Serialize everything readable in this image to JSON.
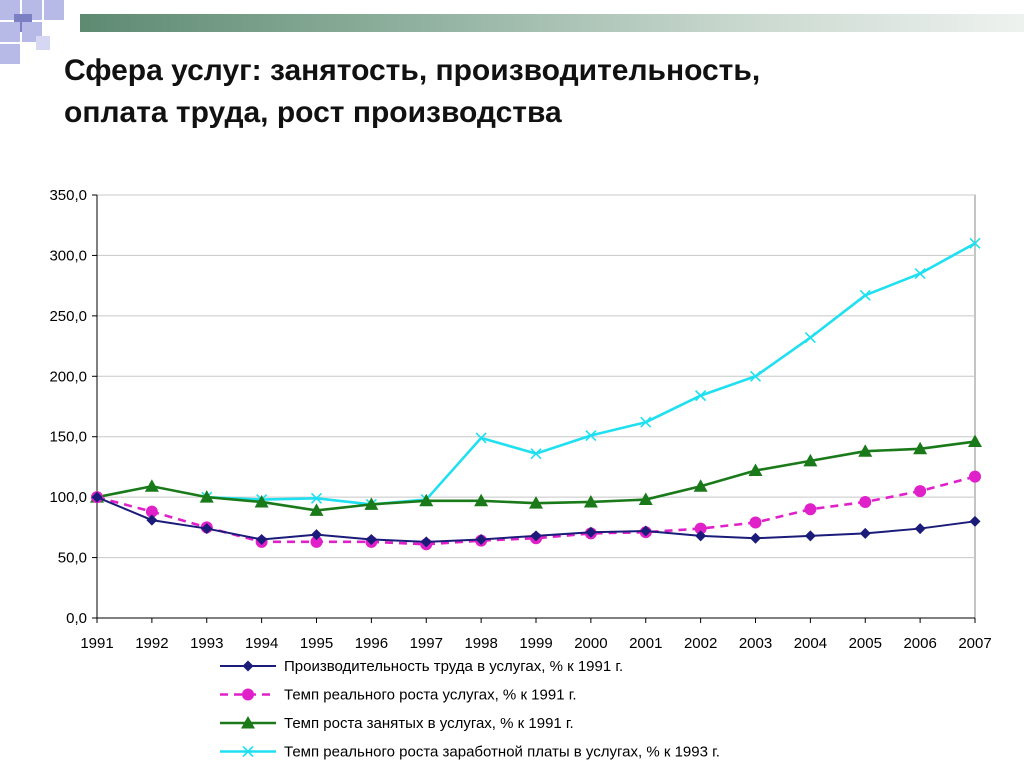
{
  "slide": {
    "title_line1": "Сфера услуг: занятость, производительность,",
    "title_line2": "оплата труда, рост производства"
  },
  "colors": {
    "accent_green": "#5e8a72",
    "deco_blue": "#b7b9e6",
    "deco_purple": "#7d7fc4"
  },
  "chart_data": {
    "type": "line",
    "x": [
      "1991",
      "1992",
      "1993",
      "1994",
      "1995",
      "1996",
      "1997",
      "1998",
      "1999",
      "2000",
      "2001",
      "2002",
      "2003",
      "2004",
      "2005",
      "2006",
      "2007"
    ],
    "ylim": [
      0,
      350
    ],
    "yticks": [
      "0,0",
      "50,0",
      "100,0",
      "150,0",
      "200,0",
      "250,0",
      "300,0",
      "350,0"
    ],
    "ytick_values": [
      0,
      50,
      100,
      150,
      200,
      250,
      300,
      350
    ],
    "grid": true,
    "legend_position": "bottom",
    "series": [
      {
        "name": "Производительность труда в услугах, % к 1991 г.",
        "color": "#1b1b7a",
        "marker": "diamond",
        "dash": "solid",
        "values": [
          100,
          81,
          74,
          65,
          69,
          65,
          63,
          65,
          68,
          71,
          72,
          68,
          66,
          68,
          70,
          74,
          80
        ]
      },
      {
        "name": "Темп реального роста услугах, % к 1991 г.",
        "color": "#e020c8",
        "marker": "circle",
        "dash": "dashed",
        "values": [
          100,
          88,
          75,
          63,
          63,
          63,
          61,
          64,
          66,
          70,
          71,
          74,
          79,
          90,
          96,
          105,
          117
        ]
      },
      {
        "name": "Темп роста занятых в услугах, % к 1991 г.",
        "color": "#1a7a1a",
        "marker": "triangle",
        "dash": "solid",
        "values": [
          100,
          109,
          100,
          96,
          89,
          94,
          97,
          97,
          95,
          96,
          98,
          109,
          122,
          130,
          138,
          140,
          146
        ]
      },
      {
        "name": "Темп реального роста заработной платы в услугах, % к 1993 г.",
        "color": "#1ee0f0",
        "marker": "x",
        "dash": "solid",
        "values": [
          null,
          null,
          100,
          98,
          99,
          94,
          98,
          149,
          136,
          151,
          162,
          184,
          200,
          232,
          267,
          285,
          310
        ]
      }
    ]
  }
}
